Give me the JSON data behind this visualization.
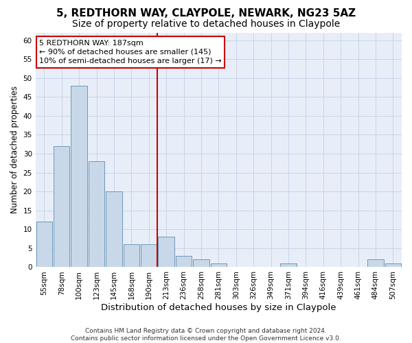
{
  "title": "5, REDTHORN WAY, CLAYPOLE, NEWARK, NG23 5AZ",
  "subtitle": "Size of property relative to detached houses in Claypole",
  "xlabel": "Distribution of detached houses by size in Claypole",
  "ylabel": "Number of detached properties",
  "bin_labels": [
    "55sqm",
    "78sqm",
    "100sqm",
    "123sqm",
    "145sqm",
    "168sqm",
    "190sqm",
    "213sqm",
    "236sqm",
    "258sqm",
    "281sqm",
    "303sqm",
    "326sqm",
    "349sqm",
    "371sqm",
    "394sqm",
    "416sqm",
    "439sqm",
    "461sqm",
    "484sqm",
    "507sqm"
  ],
  "values": [
    12,
    32,
    48,
    28,
    20,
    6,
    6,
    8,
    3,
    2,
    1,
    0,
    0,
    0,
    1,
    0,
    0,
    0,
    0,
    2,
    1
  ],
  "bar_color": "#c8d8e8",
  "bar_edge_color": "#5b8db0",
  "vline_x_index": 6,
  "vline_color": "#cc0000",
  "annotation_line1": "5 REDTHORN WAY: 187sqm",
  "annotation_line2": "← 90% of detached houses are smaller (145)",
  "annotation_line3": "10% of semi-detached houses are larger (17) →",
  "annotation_box_color": "#ffffff",
  "annotation_box_edge": "#cc0000",
  "ylim": [
    0,
    62
  ],
  "yticks": [
    0,
    5,
    10,
    15,
    20,
    25,
    30,
    35,
    40,
    45,
    50,
    55,
    60
  ],
  "grid_color": "#c8d4e8",
  "footnote": "Contains HM Land Registry data © Crown copyright and database right 2024.\nContains public sector information licensed under the Open Government Licence v3.0.",
  "title_fontsize": 11,
  "subtitle_fontsize": 10,
  "xlabel_fontsize": 9.5,
  "ylabel_fontsize": 8.5,
  "tick_fontsize": 7.5,
  "annot_fontsize": 8,
  "footnote_fontsize": 6.5
}
